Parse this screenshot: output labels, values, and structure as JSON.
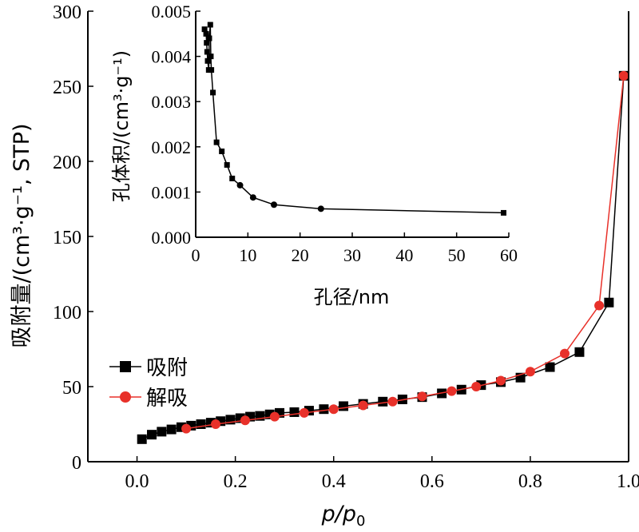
{
  "chart_data": [
    {
      "type": "line",
      "xlabel_main": "p",
      "xlabel_sub": "0",
      "ylabel": "吸附量/(cm³·g⁻¹, STP)",
      "xlim": [
        -0.1,
        1.0
      ],
      "ylim": [
        0,
        300
      ],
      "x_ticks": [
        "0.0",
        "0.2",
        "0.4",
        "0.6",
        "0.8",
        "1.0"
      ],
      "y_ticks": [
        "0",
        "50",
        "100",
        "150",
        "200",
        "250",
        "300"
      ],
      "legend_position": "lower-left",
      "series": [
        {
          "name": "吸附",
          "color": "#000000",
          "marker": "square",
          "points": [
            [
              0.01,
              15
            ],
            [
              0.03,
              18
            ],
            [
              0.05,
              20
            ],
            [
              0.07,
              21.5
            ],
            [
              0.09,
              23
            ],
            [
              0.11,
              24
            ],
            [
              0.13,
              25
            ],
            [
              0.15,
              26
            ],
            [
              0.17,
              27
            ],
            [
              0.19,
              28
            ],
            [
              0.21,
              29
            ],
            [
              0.23,
              30
            ],
            [
              0.25,
              30.5
            ],
            [
              0.27,
              31.5
            ],
            [
              0.29,
              32.5
            ],
            [
              0.32,
              33
            ],
            [
              0.35,
              34
            ],
            [
              0.38,
              35
            ],
            [
              0.42,
              37
            ],
            [
              0.46,
              38.5
            ],
            [
              0.5,
              40
            ],
            [
              0.54,
              41.5
            ],
            [
              0.58,
              43
            ],
            [
              0.62,
              45.5
            ],
            [
              0.66,
              48
            ],
            [
              0.7,
              51
            ],
            [
              0.74,
              53
            ],
            [
              0.78,
              56
            ],
            [
              0.84,
              63
            ],
            [
              0.9,
              73
            ],
            [
              0.96,
              106
            ],
            [
              0.99,
              257
            ]
          ]
        },
        {
          "name": "解吸",
          "color": "#e8312a",
          "marker": "circle",
          "points": [
            [
              0.1,
              22
            ],
            [
              0.16,
              25
            ],
            [
              0.22,
              27.5
            ],
            [
              0.28,
              30
            ],
            [
              0.34,
              32.5
            ],
            [
              0.4,
              35
            ],
            [
              0.46,
              37.5
            ],
            [
              0.52,
              40
            ],
            [
              0.58,
              43.5
            ],
            [
              0.64,
              47
            ],
            [
              0.69,
              50
            ],
            [
              0.74,
              54
            ],
            [
              0.8,
              60
            ],
            [
              0.87,
              72
            ],
            [
              0.94,
              104
            ],
            [
              0.99,
              257
            ]
          ]
        }
      ]
    },
    {
      "type": "line",
      "xlabel": "孔径/nm",
      "ylabel": "孔体积/(cm³·g⁻¹)",
      "xlim": [
        0,
        60
      ],
      "ylim": [
        0,
        0.005
      ],
      "x_ticks": [
        "0",
        "10",
        "20",
        "30",
        "40",
        "50",
        "60"
      ],
      "y_ticks": [
        "0.000",
        "0.001",
        "0.002",
        "0.003",
        "0.004",
        "0.005"
      ],
      "series": [
        {
          "color": "#000000",
          "points": [
            [
              1.7,
              0.0046
            ],
            [
              2.0,
              0.0045
            ],
            [
              2.1,
              0.0043
            ],
            [
              2.2,
              0.0041
            ],
            [
              2.3,
              0.0039
            ],
            [
              2.5,
              0.0037
            ],
            [
              2.6,
              0.0044
            ],
            [
              2.8,
              0.0047
            ],
            [
              2.9,
              0.004
            ],
            [
              3.0,
              0.0037
            ],
            [
              3.3,
              0.0032
            ],
            [
              4.0,
              0.0021
            ],
            [
              5.0,
              0.0019
            ],
            [
              6.0,
              0.0016
            ],
            [
              7.0,
              0.0013
            ],
            [
              8.5,
              0.00115
            ],
            [
              11.0,
              0.00088
            ],
            [
              15.0,
              0.00072
            ],
            [
              24.0,
              0.00063
            ],
            [
              59.0,
              0.00054
            ]
          ]
        }
      ]
    }
  ]
}
